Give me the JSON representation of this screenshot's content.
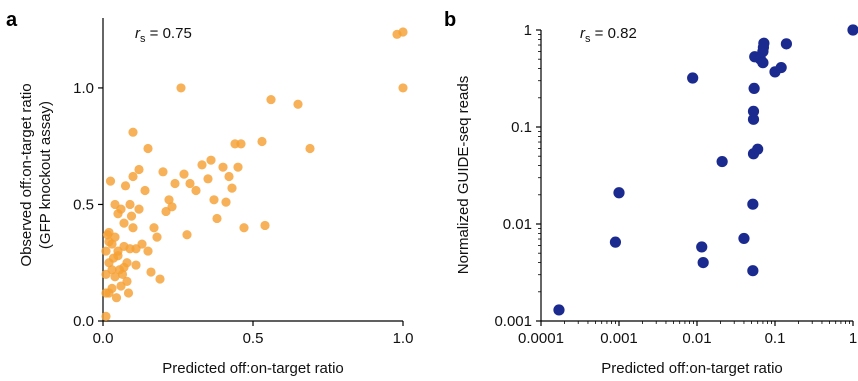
{
  "chart_data": [
    {
      "type": "scatter",
      "panel_label": "a",
      "annotation": {
        "prefix": "r",
        "subscript": "s",
        "value": " = 0.75"
      },
      "xlabel": "Predicted off:on-target ratio",
      "ylabel_lines": [
        "Observed off:on-target ratio",
        "(GFP knockout assay)"
      ],
      "xlim": [
        0,
        1.0
      ],
      "ylim": [
        0,
        1.3
      ],
      "xticks": [
        {
          "v": 0,
          "label": "0.0"
        },
        {
          "v": 0.5,
          "label": "0.5"
        },
        {
          "v": 1.0,
          "label": "1.0"
        }
      ],
      "yticks": [
        {
          "v": 0,
          "label": "0.0"
        },
        {
          "v": 0.5,
          "label": "0.5"
        },
        {
          "v": 1.0,
          "label": "1.0"
        }
      ],
      "color": "#F5A033",
      "x": [
        0.01,
        0.01,
        0.01,
        0.01,
        0.015,
        0.02,
        0.02,
        0.02,
        0.02,
        0.025,
        0.03,
        0.03,
        0.03,
        0.035,
        0.04,
        0.04,
        0.04,
        0.045,
        0.05,
        0.05,
        0.05,
        0.055,
        0.06,
        0.06,
        0.065,
        0.07,
        0.07,
        0.07,
        0.075,
        0.08,
        0.08,
        0.085,
        0.09,
        0.09,
        0.095,
        0.1,
        0.1,
        0.1,
        0.11,
        0.11,
        0.12,
        0.12,
        0.13,
        0.14,
        0.15,
        0.15,
        0.16,
        0.17,
        0.18,
        0.19,
        0.2,
        0.21,
        0.22,
        0.23,
        0.24,
        0.26,
        0.27,
        0.28,
        0.29,
        0.31,
        0.33,
        0.35,
        0.36,
        0.37,
        0.38,
        0.4,
        0.41,
        0.42,
        0.43,
        0.44,
        0.45,
        0.46,
        0.47,
        0.53,
        0.54,
        0.56,
        0.65,
        0.69,
        0.98,
        1.0,
        1.0
      ],
      "y": [
        0.12,
        0.02,
        0.2,
        0.3,
        0.37,
        0.12,
        0.25,
        0.34,
        0.38,
        0.6,
        0.22,
        0.33,
        0.14,
        0.27,
        0.5,
        0.36,
        0.19,
        0.1,
        0.28,
        0.46,
        0.3,
        0.22,
        0.48,
        0.15,
        0.2,
        0.42,
        0.32,
        0.23,
        0.58,
        0.25,
        0.17,
        0.12,
        0.5,
        0.31,
        0.45,
        0.81,
        0.62,
        0.4,
        0.31,
        0.24,
        0.65,
        0.48,
        0.33,
        0.56,
        0.74,
        0.3,
        0.21,
        0.4,
        0.36,
        0.18,
        0.64,
        0.47,
        0.52,
        0.49,
        0.59,
        1.0,
        0.63,
        0.37,
        0.59,
        0.56,
        0.67,
        0.61,
        0.69,
        0.52,
        0.44,
        0.66,
        0.51,
        0.62,
        0.57,
        0.76,
        0.66,
        0.76,
        0.4,
        0.77,
        0.41,
        0.95,
        0.93,
        0.74,
        1.23,
        1.0,
        1.24
      ]
    },
    {
      "type": "scatter",
      "panel_label": "b",
      "annotation": {
        "prefix": "r",
        "subscript": "s",
        "value": " = 0.82"
      },
      "xlabel": "Predicted off:on-target ratio",
      "ylabel_lines": [
        "Normalized GUIDE-seq reads"
      ],
      "xscale": "log",
      "yscale": "log",
      "xlim": [
        0.0001,
        1
      ],
      "ylim": [
        0.001,
        1
      ],
      "xticks": [
        {
          "v": 0.0001,
          "label": "0.0001"
        },
        {
          "v": 0.001,
          "label": "0.001"
        },
        {
          "v": 0.01,
          "label": "0.01"
        },
        {
          "v": 0.1,
          "label": "0.1"
        },
        {
          "v": 1,
          "label": "1"
        }
      ],
      "yticks": [
        {
          "v": 0.001,
          "label": "0.001"
        },
        {
          "v": 0.01,
          "label": "0.01"
        },
        {
          "v": 0.1,
          "label": "0.1"
        },
        {
          "v": 1,
          "label": "1"
        }
      ],
      "color": "#1A2A8F",
      "x": [
        0.00017,
        0.0009,
        0.001,
        0.0088,
        0.0115,
        0.012,
        0.021,
        0.04,
        0.052,
        0.052,
        0.053,
        0.053,
        0.053,
        0.054,
        0.055,
        0.06,
        0.065,
        0.07,
        0.07,
        0.071,
        0.072,
        0.1,
        0.12,
        0.14,
        1.0
      ],
      "y": [
        0.0013,
        0.0065,
        0.021,
        0.32,
        0.0058,
        0.004,
        0.044,
        0.0071,
        0.0033,
        0.016,
        0.053,
        0.12,
        0.145,
        0.25,
        0.53,
        0.059,
        0.5,
        0.46,
        0.6,
        0.66,
        0.73,
        0.37,
        0.41,
        0.72,
        1.0
      ]
    }
  ]
}
